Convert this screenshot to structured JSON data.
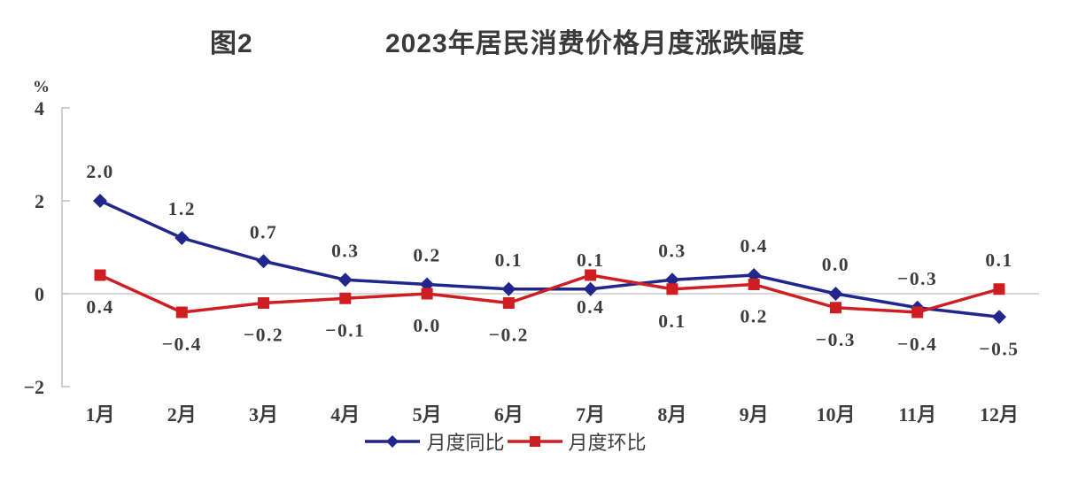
{
  "chart_data": {
    "type": "line",
    "figure_label": "图2",
    "title": "2023年居民消费价格月度涨跌幅度",
    "unit": "%",
    "categories": [
      "1月",
      "2月",
      "3月",
      "4月",
      "5月",
      "6月",
      "7月",
      "8月",
      "9月",
      "10月",
      "11月",
      "12月"
    ],
    "series": [
      {
        "name": "月度同比",
        "color": "#20268B",
        "marker": "diamond",
        "values": [
          2.0,
          1.2,
          0.7,
          0.3,
          0.2,
          0.1,
          0.1,
          0.3,
          0.4,
          0.0,
          -0.3,
          -0.5
        ],
        "label_side": [
          "above",
          "above",
          "above",
          "above",
          "above",
          "above",
          "above",
          "above",
          "above",
          "above",
          "above",
          "below"
        ]
      },
      {
        "name": "月度环比",
        "color": "#CE1E22",
        "marker": "square",
        "values": [
          0.4,
          -0.4,
          -0.2,
          -0.1,
          0.0,
          -0.2,
          0.4,
          0.1,
          0.2,
          -0.3,
          -0.4,
          0.1
        ],
        "label_side": [
          "below",
          "below",
          "below",
          "below",
          "below",
          "below",
          "below",
          "below",
          "below",
          "below",
          "below",
          "above"
        ]
      }
    ],
    "y_axis": {
      "ticks": [
        4,
        2,
        0,
        -2
      ],
      "range": [
        -2,
        4
      ]
    },
    "legend_position": "bottom",
    "grid": "zero-baseline-only",
    "text_color": "#3D3D3D",
    "axis_color": "#C0C0C0"
  }
}
